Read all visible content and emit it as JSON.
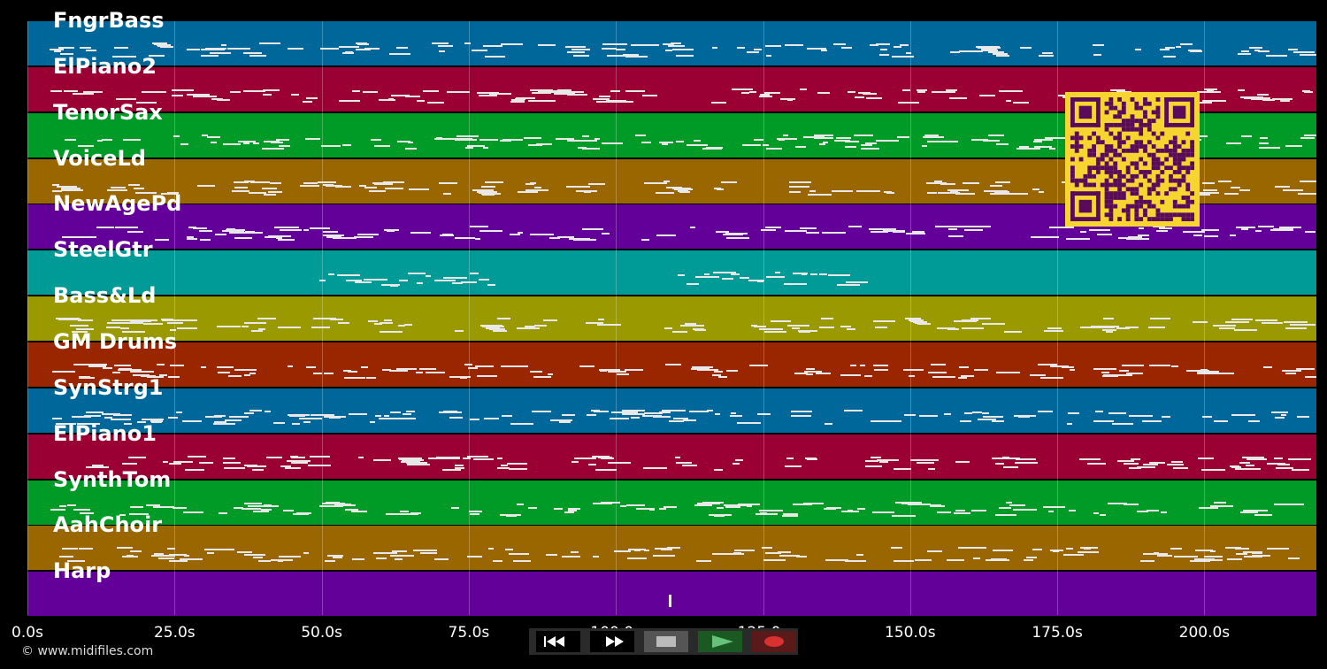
{
  "tracks": [
    {
      "name": "FngrBass",
      "color": "#00679a"
    },
    {
      "name": "ElPiano2",
      "color": "#9a0034"
    },
    {
      "name": "TenorSax",
      "color": "#009a26"
    },
    {
      "name": "VoiceLd",
      "color": "#9a6600"
    },
    {
      "name": "NewAgePd",
      "color": "#63009a"
    },
    {
      "name": "SteelGtr",
      "color": "#009a97"
    },
    {
      "name": "Bass&Ld",
      "color": "#9a9a00"
    },
    {
      "name": "GM Drums",
      "color": "#9a2600"
    },
    {
      "name": "SynStrg1",
      "color": "#00679a"
    },
    {
      "name": "ElPiano1",
      "color": "#9a0034"
    },
    {
      "name": "SynthTom",
      "color": "#009a26"
    },
    {
      "name": "AahChoir",
      "color": "#9a6600"
    },
    {
      "name": "Harp",
      "color": "#63009a"
    }
  ],
  "timeline": {
    "ticks": [
      "0.0s",
      "25.0s",
      "50.0s",
      "75.0s",
      "100.0s",
      "125.0s",
      "150.0s",
      "175.0s",
      "200.0s"
    ]
  },
  "footer": {
    "copyright": "© www.midifiles.com"
  },
  "transport": {
    "buttons": [
      {
        "name": "rewind-button",
        "icon": "rewind-icon"
      },
      {
        "name": "fast-forward-button",
        "icon": "fast-forward-icon"
      },
      {
        "name": "stop-button",
        "icon": "stop-icon"
      },
      {
        "name": "play-button",
        "icon": "play-icon"
      },
      {
        "name": "record-button",
        "icon": "record-icon"
      }
    ]
  },
  "qr": {
    "color": "#f6d531",
    "ink": "#5a0a5a",
    "icon": "qr-code-icon"
  }
}
